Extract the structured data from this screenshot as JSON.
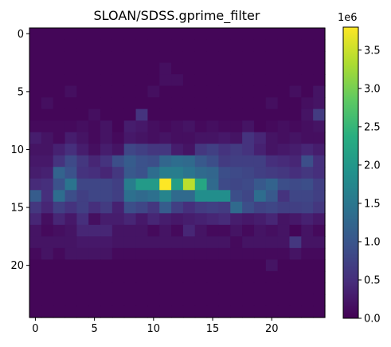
{
  "chart_data": {
    "type": "heatmap",
    "title": "SLOAN/SDSS.gprime_filter",
    "colormap": "viridis",
    "rows": 25,
    "cols": 25,
    "x_ticks": [
      "0",
      "5",
      "10",
      "15",
      "20"
    ],
    "y_ticks": [
      "0",
      "5",
      "10",
      "15",
      "20"
    ],
    "x_tick_values": [
      0,
      5,
      10,
      15,
      20
    ],
    "y_tick_values": [
      0,
      5,
      10,
      15,
      20
    ],
    "colorbar": {
      "ticks": [
        "0.0",
        "0.5",
        "1.0",
        "1.5",
        "2.0",
        "2.5",
        "3.0",
        "3.5"
      ],
      "tick_values": [
        0.0,
        0.5,
        1.0,
        1.5,
        2.0,
        2.5,
        3.0,
        3.5
      ],
      "multiplier_label": "1e6",
      "range": [
        0.0,
        3.8
      ]
    },
    "units_multiplier": 1000000,
    "values": [
      [
        0.05,
        0.05,
        0.05,
        0.05,
        0.05,
        0.05,
        0.05,
        0.05,
        0.05,
        0.05,
        0.05,
        0.05,
        0.05,
        0.05,
        0.05,
        0.05,
        0.05,
        0.05,
        0.05,
        0.05,
        0.05,
        0.05,
        0.05,
        0.05,
        0.05
      ],
      [
        0.05,
        0.05,
        0.05,
        0.05,
        0.05,
        0.05,
        0.05,
        0.05,
        0.05,
        0.05,
        0.05,
        0.05,
        0.05,
        0.05,
        0.05,
        0.05,
        0.05,
        0.05,
        0.05,
        0.05,
        0.05,
        0.05,
        0.05,
        0.05,
        0.05
      ],
      [
        0.05,
        0.05,
        0.05,
        0.05,
        0.05,
        0.05,
        0.05,
        0.05,
        0.05,
        0.05,
        0.05,
        0.05,
        0.05,
        0.05,
        0.05,
        0.05,
        0.05,
        0.05,
        0.05,
        0.05,
        0.05,
        0.05,
        0.05,
        0.05,
        0.05
      ],
      [
        0.05,
        0.05,
        0.05,
        0.05,
        0.05,
        0.05,
        0.05,
        0.05,
        0.05,
        0.05,
        0.05,
        0.15,
        0.05,
        0.05,
        0.05,
        0.05,
        0.05,
        0.05,
        0.05,
        0.05,
        0.05,
        0.05,
        0.05,
        0.05,
        0.05
      ],
      [
        0.05,
        0.05,
        0.05,
        0.05,
        0.05,
        0.05,
        0.05,
        0.05,
        0.05,
        0.05,
        0.05,
        0.15,
        0.15,
        0.05,
        0.05,
        0.05,
        0.05,
        0.05,
        0.05,
        0.05,
        0.05,
        0.05,
        0.05,
        0.05,
        0.05
      ],
      [
        0.05,
        0.05,
        0.05,
        0.15,
        0.05,
        0.05,
        0.05,
        0.05,
        0.05,
        0.05,
        0.15,
        0.05,
        0.05,
        0.05,
        0.05,
        0.05,
        0.05,
        0.05,
        0.05,
        0.05,
        0.05,
        0.05,
        0.15,
        0.05,
        0.2
      ],
      [
        0.05,
        0.15,
        0.05,
        0.05,
        0.05,
        0.05,
        0.05,
        0.05,
        0.05,
        0.05,
        0.05,
        0.05,
        0.05,
        0.05,
        0.05,
        0.05,
        0.05,
        0.05,
        0.05,
        0.05,
        0.15,
        0.05,
        0.05,
        0.15,
        0.2
      ],
      [
        0.05,
        0.05,
        0.05,
        0.05,
        0.05,
        0.15,
        0.05,
        0.05,
        0.05,
        0.55,
        0.05,
        0.05,
        0.05,
        0.05,
        0.05,
        0.05,
        0.05,
        0.05,
        0.05,
        0.05,
        0.05,
        0.05,
        0.05,
        0.2,
        0.65
      ],
      [
        0.1,
        0.1,
        0.1,
        0.1,
        0.15,
        0.1,
        0.2,
        0.05,
        0.3,
        0.25,
        0.15,
        0.1,
        0.15,
        0.2,
        0.1,
        0.15,
        0.1,
        0.1,
        0.2,
        0.05,
        0.1,
        0.15,
        0.1,
        0.15,
        0.2
      ],
      [
        0.3,
        0.2,
        0.1,
        0.3,
        0.2,
        0.1,
        0.2,
        0.1,
        0.25,
        0.2,
        0.15,
        0.2,
        0.15,
        0.15,
        0.2,
        0.2,
        0.25,
        0.2,
        0.55,
        0.4,
        0.2,
        0.15,
        0.2,
        0.15,
        0.15
      ],
      [
        0.2,
        0.2,
        0.35,
        0.5,
        0.3,
        0.15,
        0.3,
        0.2,
        0.8,
        0.7,
        0.6,
        0.6,
        0.3,
        0.2,
        0.6,
        0.7,
        0.55,
        0.65,
        0.55,
        0.35,
        0.2,
        0.25,
        0.3,
        0.4,
        0.3
      ],
      [
        0.25,
        0.25,
        0.55,
        0.85,
        0.6,
        0.4,
        0.55,
        0.9,
        1.1,
        0.95,
        0.9,
        1.25,
        1.35,
        1.3,
        1.05,
        0.9,
        0.65,
        0.7,
        0.7,
        0.7,
        0.5,
        0.45,
        0.4,
        0.9,
        0.5
      ],
      [
        0.3,
        0.35,
        1.2,
        0.95,
        0.55,
        0.5,
        0.4,
        0.6,
        1.05,
        0.95,
        1.35,
        1.6,
        1.6,
        1.45,
        1.3,
        1.25,
        0.9,
        0.85,
        0.8,
        0.7,
        0.65,
        0.6,
        0.5,
        0.6,
        0.5
      ],
      [
        0.45,
        0.5,
        0.95,
        1.45,
        0.8,
        0.8,
        0.8,
        0.7,
        1.6,
        2.05,
        2.05,
        3.8,
        2.1,
        3.4,
        2.25,
        1.3,
        0.85,
        0.8,
        0.85,
        1.05,
        1.2,
        0.9,
        0.85,
        0.9,
        0.7
      ],
      [
        1.1,
        0.5,
        1.35,
        0.9,
        0.7,
        0.8,
        0.8,
        0.7,
        1.4,
        1.3,
        1.4,
        1.7,
        1.3,
        1.3,
        1.85,
        1.85,
        1.85,
        0.9,
        0.8,
        1.35,
        1.05,
        0.55,
        0.8,
        0.8,
        0.7
      ],
      [
        0.6,
        0.4,
        0.7,
        0.55,
        0.7,
        0.5,
        0.65,
        0.35,
        0.9,
        0.8,
        0.6,
        1.1,
        0.7,
        0.5,
        0.65,
        0.7,
        0.65,
        1.3,
        0.9,
        0.75,
        0.8,
        0.7,
        0.7,
        0.75,
        0.6
      ],
      [
        0.4,
        0.15,
        0.4,
        0.25,
        0.5,
        0.15,
        0.3,
        0.3,
        0.4,
        0.25,
        0.4,
        0.3,
        0.25,
        0.3,
        0.35,
        0.4,
        0.45,
        0.3,
        0.25,
        0.3,
        0.4,
        0.2,
        0.25,
        0.35,
        0.25
      ],
      [
        0.2,
        0.1,
        0.15,
        0.2,
        0.4,
        0.4,
        0.4,
        0.2,
        0.2,
        0.2,
        0.1,
        0.2,
        0.1,
        0.4,
        0.2,
        0.1,
        0.1,
        0.2,
        0.1,
        0.2,
        0.15,
        0.2,
        0.05,
        0.2,
        0.1
      ],
      [
        0.2,
        0.2,
        0.2,
        0.2,
        0.25,
        0.25,
        0.25,
        0.2,
        0.2,
        0.2,
        0.2,
        0.2,
        0.2,
        0.2,
        0.2,
        0.2,
        0.2,
        0.1,
        0.2,
        0.2,
        0.2,
        0.2,
        0.6,
        0.2,
        0.2
      ],
      [
        0.1,
        0.2,
        0.1,
        0.2,
        0.2,
        0.2,
        0.2,
        0.1,
        0.1,
        0.1,
        0.1,
        0.1,
        0.1,
        0.1,
        0.1,
        0.1,
        0.1,
        0.1,
        0.1,
        0.1,
        0.1,
        0.1,
        0.2,
        0.1,
        0.1
      ],
      [
        0.05,
        0.05,
        0.05,
        0.05,
        0.05,
        0.05,
        0.05,
        0.05,
        0.05,
        0.05,
        0.05,
        0.05,
        0.05,
        0.05,
        0.05,
        0.05,
        0.05,
        0.05,
        0.05,
        0.05,
        0.2,
        0.05,
        0.05,
        0.05,
        0.05
      ],
      [
        0.05,
        0.05,
        0.05,
        0.05,
        0.05,
        0.05,
        0.05,
        0.05,
        0.05,
        0.05,
        0.05,
        0.05,
        0.05,
        0.05,
        0.05,
        0.05,
        0.05,
        0.05,
        0.05,
        0.05,
        0.05,
        0.05,
        0.05,
        0.05,
        0.05
      ],
      [
        0.05,
        0.05,
        0.05,
        0.05,
        0.05,
        0.05,
        0.05,
        0.05,
        0.05,
        0.05,
        0.05,
        0.05,
        0.05,
        0.05,
        0.05,
        0.05,
        0.05,
        0.05,
        0.05,
        0.05,
        0.05,
        0.05,
        0.05,
        0.05,
        0.05
      ],
      [
        0.05,
        0.05,
        0.05,
        0.05,
        0.05,
        0.05,
        0.05,
        0.05,
        0.05,
        0.05,
        0.05,
        0.05,
        0.05,
        0.05,
        0.05,
        0.05,
        0.05,
        0.05,
        0.05,
        0.05,
        0.05,
        0.05,
        0.05,
        0.05,
        0.05
      ],
      [
        0.05,
        0.05,
        0.05,
        0.05,
        0.05,
        0.05,
        0.05,
        0.05,
        0.05,
        0.05,
        0.05,
        0.05,
        0.05,
        0.05,
        0.05,
        0.05,
        0.05,
        0.05,
        0.05,
        0.05,
        0.05,
        0.05,
        0.05,
        0.05,
        0.05
      ]
    ]
  }
}
